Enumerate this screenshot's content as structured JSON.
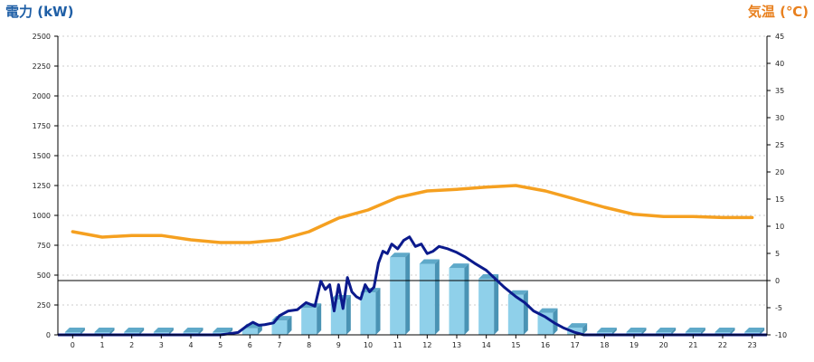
{
  "colors": {
    "title_left": "#1f5fa6",
    "title_right": "#e8801e",
    "bar_front": "#8fd0ea",
    "bar_top": "#5fa9c9",
    "bar_side": "#4a93b4",
    "power_line": "#0b1a8c",
    "temp_line": "#f5a020",
    "grid": "#cccccc",
    "axis": "#000000"
  },
  "chart_data": {
    "type": "bar",
    "title_left": "電力 (kW)",
    "title_right": "気温 (℃)",
    "categories": [
      "0",
      "1",
      "2",
      "3",
      "4",
      "5",
      "6",
      "7",
      "8",
      "9",
      "10",
      "11",
      "12",
      "13",
      "14",
      "15",
      "16",
      "17",
      "18",
      "19",
      "20",
      "21",
      "22",
      "23"
    ],
    "y_left": {
      "min": 0,
      "max": 2500,
      "ticks": [
        "0",
        "250",
        "500",
        "750",
        "1000",
        "1250",
        "1500",
        "1750",
        "2000",
        "2250",
        "2500"
      ]
    },
    "y_right": {
      "min": -10,
      "max": 45,
      "ticks": [
        "-10",
        "-5",
        "0",
        "5",
        "10",
        "15",
        "20",
        "25",
        "30",
        "35",
        "40",
        "45"
      ]
    },
    "grid": true,
    "bars": {
      "axis": "left",
      "values": [
        0,
        0,
        0,
        0,
        0,
        0,
        55,
        120,
        225,
        295,
        355,
        650,
        595,
        560,
        470,
        335,
        185,
        60,
        0,
        0,
        0,
        0,
        0,
        0
      ]
    },
    "power_line": {
      "axis": "left",
      "x": [
        0,
        1,
        2,
        3,
        4,
        5,
        5.6,
        5.9,
        6.1,
        6.3,
        6.5,
        6.8,
        7.0,
        7.3,
        7.6,
        7.9,
        8.2,
        8.4,
        8.55,
        8.7,
        8.85,
        9.0,
        9.15,
        9.3,
        9.45,
        9.6,
        9.75,
        9.9,
        10.05,
        10.2,
        10.35,
        10.5,
        10.65,
        10.8,
        11.0,
        11.2,
        11.4,
        11.6,
        11.8,
        12.0,
        12.2,
        12.4,
        12.7,
        13.0,
        13.3,
        13.6,
        14.0,
        14.3,
        14.6,
        15.0,
        15.3,
        15.6,
        16.0,
        16.3,
        16.6,
        17.0,
        17.3
      ],
      "y": [
        0,
        0,
        0,
        0,
        0,
        0,
        20,
        75,
        105,
        80,
        85,
        100,
        160,
        200,
        210,
        270,
        240,
        450,
        380,
        420,
        200,
        420,
        220,
        480,
        360,
        320,
        300,
        420,
        360,
        400,
        600,
        700,
        680,
        760,
        720,
        790,
        820,
        740,
        760,
        680,
        700,
        740,
        720,
        690,
        650,
        600,
        540,
        470,
        400,
        320,
        270,
        200,
        150,
        100,
        60,
        20,
        0
      ]
    },
    "temp_line": {
      "axis": "right",
      "x": [
        0,
        1,
        2,
        3,
        4,
        5,
        6,
        7,
        8,
        9,
        10,
        11,
        12,
        13,
        14,
        15,
        16,
        17,
        18,
        19,
        20,
        21,
        22,
        23
      ],
      "y": [
        9.0,
        8.0,
        8.3,
        8.3,
        7.5,
        7.0,
        7.0,
        7.5,
        9.0,
        11.5,
        13.0,
        15.3,
        16.5,
        16.8,
        17.2,
        17.5,
        16.5,
        15.0,
        13.5,
        12.2,
        11.8,
        11.8,
        11.6,
        11.6
      ]
    }
  }
}
